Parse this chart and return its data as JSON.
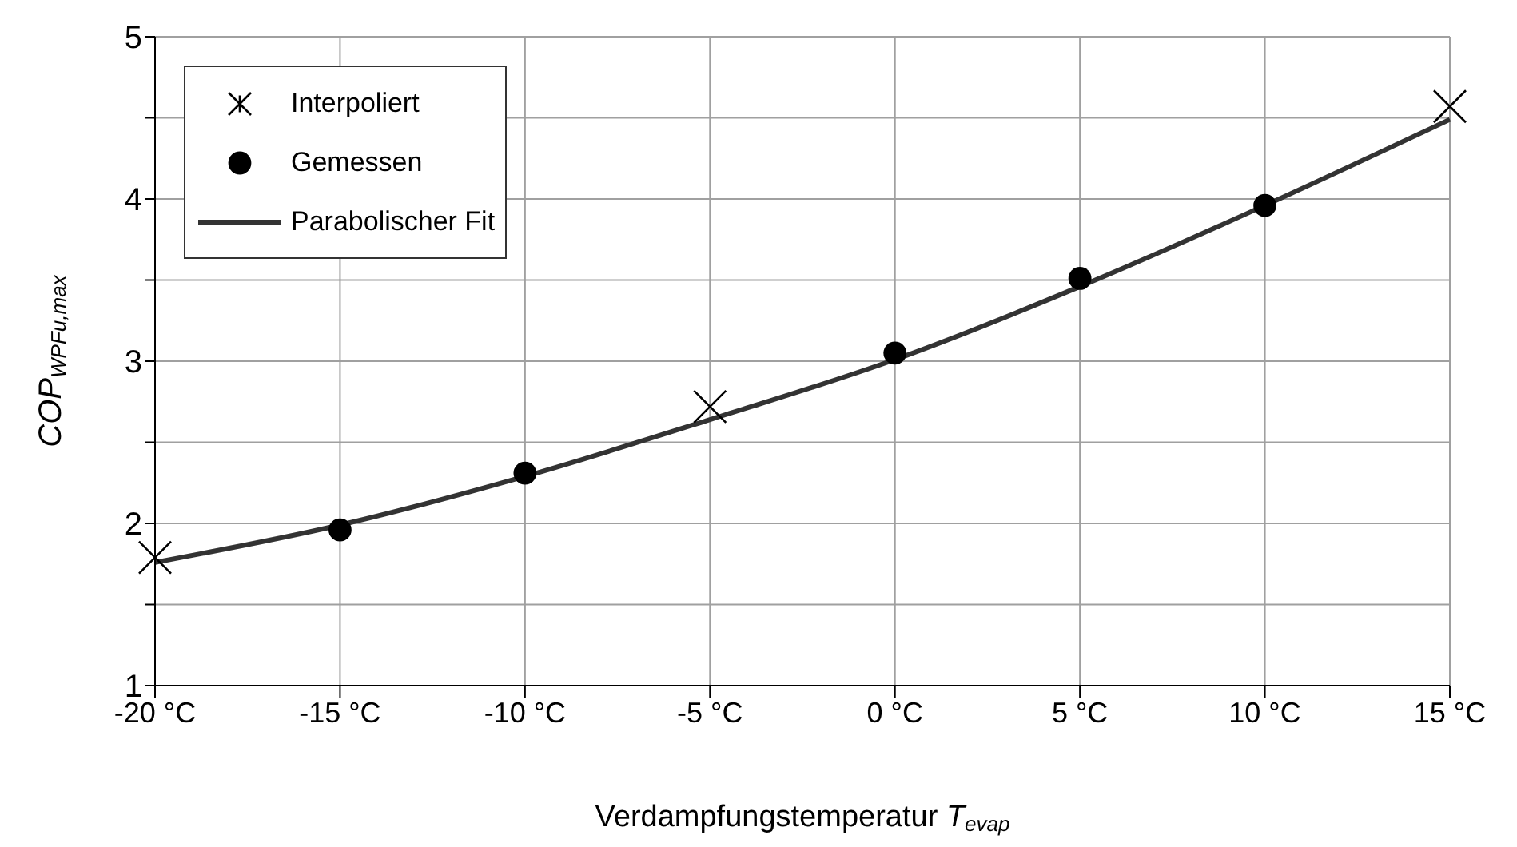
{
  "chart_data": {
    "type": "scatter",
    "xlabel": "Verdampfungstemperatur T$_{evap}$",
    "ylabel": "COP$_{WPFu,max}$",
    "xlim": [
      -20,
      15
    ],
    "xticks": [
      {
        "value": -20,
        "label": "-20 °C"
      },
      {
        "value": -15,
        "label": "-15 °C"
      },
      {
        "value": -10,
        "label": "-10 °C"
      },
      {
        "value": -5,
        "label": "-5 °C"
      },
      {
        "value": 0,
        "label": "0 °C"
      },
      {
        "value": 5,
        "label": "5 °C"
      },
      {
        "value": 10,
        "label": "10 °C"
      },
      {
        "value": 15,
        "label": "15 °C"
      }
    ],
    "ylim": [
      1,
      5
    ],
    "yticks": [
      1,
      {
        "value": 1.5,
        "label": null
      },
      2,
      {
        "value": 2.5,
        "label": null
      },
      3,
      {
        "value": 3.5,
        "label": null
      },
      4,
      {
        "value": 4.5,
        "label": null
      },
      5
    ],
    "grid": true,
    "legend": "top left",
    "series": [
      {
        "name": "Interpoliert",
        "marker": "cross",
        "color": "#000000",
        "x": [
          -20,
          -5,
          15
        ],
        "values": [
          1.79,
          2.72,
          4.57
        ]
      },
      {
        "name": "Gemessen",
        "marker": "circle",
        "color": "#000000",
        "x": [
          -15,
          -10,
          0,
          5,
          10
        ],
        "values": [
          1.96,
          2.31,
          3.05,
          3.51,
          3.96
        ]
      },
      {
        "name": "Parabolischer Fit",
        "type": "line",
        "marker": "none",
        "line_style": "solid",
        "color": "#333333",
        "x": [
          -20,
          -15,
          -10,
          -5,
          0,
          5,
          10,
          15
        ],
        "values": [
          1.76,
          1.99,
          2.29,
          2.64,
          3.01,
          3.46,
          3.96,
          4.49
        ]
      }
    ]
  }
}
